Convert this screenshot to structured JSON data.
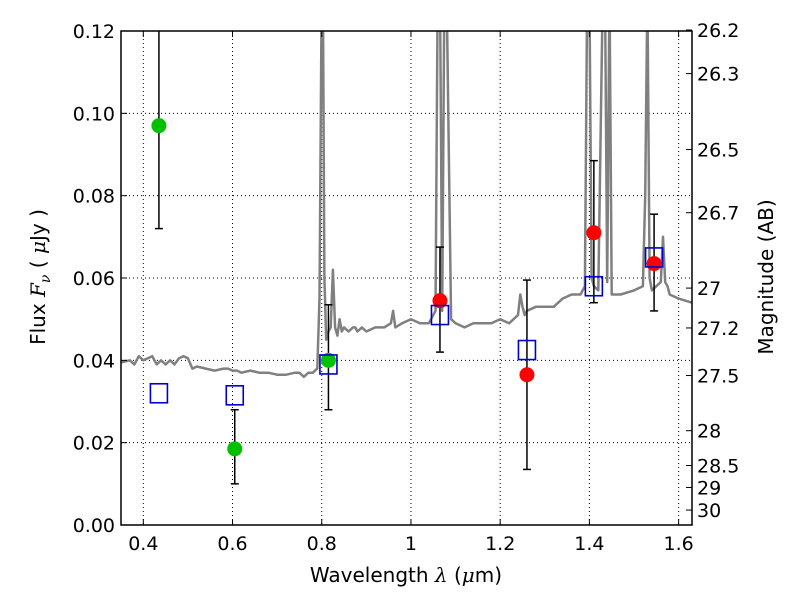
{
  "chart_data": {
    "type": "scatter",
    "x_axis": {
      "label_text": "Wavelength",
      "label_symbol": "λ",
      "label_unit_open": " (",
      "label_unit_mu": "μ",
      "label_unit_rest": "m)",
      "range": [
        0.35,
        1.63
      ],
      "ticks": [
        0.4,
        0.6,
        0.8,
        1.0,
        1.2,
        1.4,
        1.6
      ],
      "tick_labels": [
        "0.4",
        "0.6",
        "0.8",
        "1",
        "1.2",
        "1.4",
        "1.6"
      ]
    },
    "y_axis": {
      "label_text": "Flux",
      "label_symbol": "F",
      "label_subscript": "ν",
      "label_unit_open": "( ",
      "label_unit_mu": "μ",
      "label_unit_rest": "Jy )",
      "range": [
        0.0,
        0.12
      ],
      "ticks": [
        0.0,
        0.02,
        0.04,
        0.06,
        0.08,
        0.1,
        0.12
      ],
      "tick_labels": [
        "0.00",
        "0.02",
        "0.04",
        "0.06",
        "0.08",
        "0.10",
        "0.12"
      ]
    },
    "y2_axis": {
      "label": "Magnitude (AB)",
      "ticks": [
        26.2,
        26.3,
        26.5,
        26.7,
        27,
        27.2,
        27.5,
        28,
        28.5,
        29,
        30
      ],
      "tick_labels": [
        "26.2",
        "26.3",
        "26.5",
        "26.7",
        "27",
        "27.2",
        "27.5",
        "28",
        "28.5",
        "29",
        "30"
      ]
    },
    "grid": true,
    "colors": {
      "spectrum": "#808080",
      "green_points": "#00c000",
      "red_points": "#ff0000",
      "model_squares": "#0000cc",
      "error_bars": "#000000"
    },
    "spectrum": {
      "x": [
        0.35,
        0.37,
        0.38,
        0.39,
        0.4,
        0.42,
        0.43,
        0.44,
        0.45,
        0.46,
        0.47,
        0.48,
        0.49,
        0.5,
        0.51,
        0.52,
        0.54,
        0.56,
        0.58,
        0.59,
        0.6,
        0.61,
        0.62,
        0.64,
        0.66,
        0.68,
        0.7,
        0.72,
        0.74,
        0.75,
        0.76,
        0.77,
        0.78,
        0.79,
        0.795,
        0.8,
        0.803,
        0.806,
        0.81,
        0.815,
        0.82,
        0.825,
        0.83,
        0.835,
        0.84,
        0.845,
        0.85,
        0.86,
        0.87,
        0.875,
        0.88,
        0.89,
        0.9,
        0.92,
        0.94,
        0.955,
        0.96,
        0.965,
        0.98,
        1.0,
        1.02,
        1.04,
        1.055,
        1.06,
        1.065,
        1.07,
        1.075,
        1.08,
        1.09,
        1.1,
        1.12,
        1.14,
        1.16,
        1.18,
        1.2,
        1.22,
        1.24,
        1.245,
        1.25,
        1.255,
        1.26,
        1.28,
        1.3,
        1.32,
        1.34,
        1.36,
        1.38,
        1.39,
        1.395,
        1.4,
        1.405,
        1.41,
        1.42,
        1.43,
        1.435,
        1.44,
        1.445,
        1.45,
        1.47,
        1.5,
        1.52,
        1.525,
        1.53,
        1.535,
        1.54,
        1.55,
        1.56,
        1.565,
        1.57,
        1.575,
        1.58,
        1.6,
        1.63
      ],
      "y": [
        0.0395,
        0.04,
        0.039,
        0.041,
        0.04,
        0.041,
        0.039,
        0.04,
        0.039,
        0.04,
        0.039,
        0.0405,
        0.041,
        0.0405,
        0.038,
        0.0385,
        0.038,
        0.0375,
        0.038,
        0.038,
        0.0375,
        0.0375,
        0.037,
        0.0375,
        0.037,
        0.037,
        0.0365,
        0.0365,
        0.037,
        0.037,
        0.036,
        0.037,
        0.037,
        0.038,
        0.055,
        0.13,
        0.12,
        0.06,
        0.045,
        0.047,
        0.048,
        0.062,
        0.048,
        0.046,
        0.05,
        0.047,
        0.048,
        0.047,
        0.048,
        0.048,
        0.047,
        0.048,
        0.047,
        0.048,
        0.048,
        0.049,
        0.052,
        0.048,
        0.049,
        0.05,
        0.049,
        0.049,
        0.052,
        0.13,
        0.13,
        0.052,
        0.13,
        0.13,
        0.05,
        0.049,
        0.048,
        0.049,
        0.049,
        0.049,
        0.05,
        0.049,
        0.051,
        0.056,
        0.053,
        0.051,
        0.052,
        0.053,
        0.053,
        0.053,
        0.055,
        0.056,
        0.056,
        0.058,
        0.13,
        0.13,
        0.06,
        0.058,
        0.057,
        0.13,
        0.13,
        0.059,
        0.13,
        0.056,
        0.056,
        0.057,
        0.058,
        0.08,
        0.13,
        0.06,
        0.057,
        0.058,
        0.059,
        0.07,
        0.059,
        0.058,
        0.056,
        0.055,
        0.054
      ]
    },
    "series": [
      {
        "marker": "circle",
        "color": "green",
        "x": [
          0.435,
          0.605,
          0.815
        ],
        "y": [
          0.097,
          0.0185,
          0.04
        ],
        "yerr_low": [
          0.072,
          0.01,
          0.028
        ],
        "yerr_high": [
          0.125,
          0.028,
          0.0535
        ]
      },
      {
        "marker": "circle",
        "color": "red",
        "x": [
          1.065,
          1.26,
          1.41,
          1.545
        ],
        "y": [
          0.0545,
          0.0365,
          0.071,
          0.0635
        ],
        "yerr_low": [
          0.042,
          0.0135,
          0.054,
          0.052
        ],
        "yerr_high": [
          0.0675,
          0.0595,
          0.0885,
          0.0755
        ]
      },
      {
        "marker": "open-square",
        "color": "blue",
        "x": [
          0.435,
          0.605,
          0.815,
          1.065,
          1.26,
          1.41,
          1.545
        ],
        "y": [
          0.032,
          0.0315,
          0.039,
          0.051,
          0.0425,
          0.058,
          0.065
        ]
      }
    ]
  }
}
